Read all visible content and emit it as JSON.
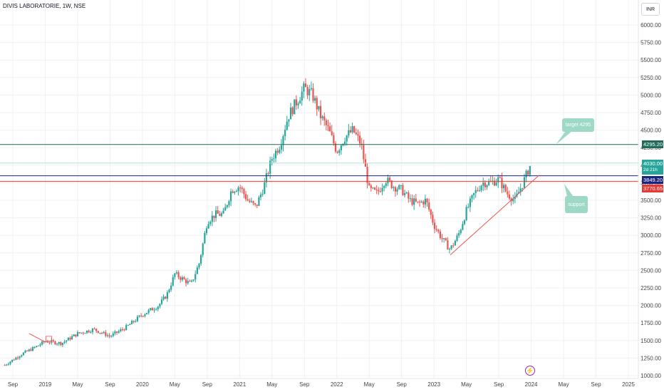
{
  "header": {
    "title": "DIVIS LABORATORIE, 1W, NSE",
    "currency": "INR"
  },
  "price_tags": {
    "target_price": "4295.20",
    "current_price": "4030.00",
    "countdown": "2d 21h",
    "blue_price": "3849.20",
    "red_price": "3770.65"
  },
  "annotations": {
    "target_label": "target 4295",
    "support_label": "support"
  },
  "icons": {
    "flash": "lightning-icon"
  },
  "colors": {
    "up": "#26a69a",
    "down": "#ef5350",
    "target_line": "#1e6b57",
    "blue_line": "#1a237e",
    "red_line": "#e53935",
    "callout": "#9ed8c6"
  },
  "chart_data": {
    "type": "candlestick",
    "title": "DIVIS LABORATORIE, 1W, NSE",
    "ylim": [
      1000,
      6250
    ],
    "y_ticks": [
      "1000.00",
      "1250.00",
      "1500.00",
      "1750.00",
      "2000.00",
      "2250.00",
      "2500.00",
      "2750.00",
      "3000.00",
      "3250.00",
      "3500.00",
      "3750.00",
      "4000.00",
      "4250.00",
      "4500.00",
      "4750.00",
      "5000.00",
      "5250.00",
      "5500.00",
      "5750.00",
      "6000.00"
    ],
    "x_ticks": [
      "Sep",
      "2019",
      "May",
      "Sep",
      "2020",
      "May",
      "Sep",
      "2021",
      "May",
      "Sep",
      "2022",
      "May",
      "Sep",
      "2023",
      "May",
      "Sep",
      "2024",
      "May",
      "Sep",
      "2025"
    ],
    "x_range": [
      "2018-08",
      "2025-01"
    ],
    "grid": true,
    "series": [
      {
        "values": [
          [
            "2018-08",
            1150
          ],
          [
            "2018-10",
            1300
          ],
          [
            "2018-12",
            1420
          ],
          [
            "2019-01",
            1490
          ],
          [
            "2019-03",
            1460
          ],
          [
            "2019-05",
            1600
          ],
          [
            "2019-07",
            1660
          ],
          [
            "2019-09",
            1560
          ],
          [
            "2019-11",
            1690
          ],
          [
            "2020-01",
            1870
          ],
          [
            "2020-03",
            2000
          ],
          [
            "2020-04",
            2150
          ],
          [
            "2020-05",
            2450
          ],
          [
            "2020-07",
            2300
          ],
          [
            "2020-08",
            2600
          ],
          [
            "2020-09",
            3200
          ],
          [
            "2020-10",
            3300
          ],
          [
            "2020-11",
            3300
          ],
          [
            "2020-12",
            3650
          ],
          [
            "2021-01",
            3700
          ],
          [
            "2021-02",
            3500
          ],
          [
            "2021-03",
            3400
          ],
          [
            "2021-04",
            3700
          ],
          [
            "2021-05",
            4100
          ],
          [
            "2021-06",
            4300
          ],
          [
            "2021-07",
            4700
          ],
          [
            "2021-08",
            4900
          ],
          [
            "2021-09",
            5100
          ],
          [
            "2021-10",
            5000
          ],
          [
            "2021-11",
            4700
          ],
          [
            "2021-12",
            4500
          ],
          [
            "2022-01",
            4200
          ],
          [
            "2022-02",
            4400
          ],
          [
            "2022-03",
            4500
          ],
          [
            "2022-04",
            4300
          ],
          [
            "2022-05",
            3650
          ],
          [
            "2022-06",
            3600
          ],
          [
            "2022-07",
            3800
          ],
          [
            "2022-08",
            3700
          ],
          [
            "2022-09",
            3650
          ],
          [
            "2022-10",
            3500
          ],
          [
            "2022-11",
            3450
          ],
          [
            "2022-12",
            3500
          ],
          [
            "2023-01",
            3150
          ],
          [
            "2023-02",
            2950
          ],
          [
            "2023-03",
            2800
          ],
          [
            "2023-04",
            3000
          ],
          [
            "2023-05",
            3350
          ],
          [
            "2023-06",
            3600
          ],
          [
            "2023-07",
            3750
          ],
          [
            "2023-08",
            3750
          ],
          [
            "2023-09",
            3800
          ],
          [
            "2023-10",
            3600
          ],
          [
            "2023-11",
            3500
          ],
          [
            "2023-12",
            3750
          ],
          [
            "2024-01",
            4030
          ]
        ]
      }
    ],
    "horizontal_lines": [
      4295.2,
      4030.0,
      3849.2,
      3770.65
    ]
  }
}
